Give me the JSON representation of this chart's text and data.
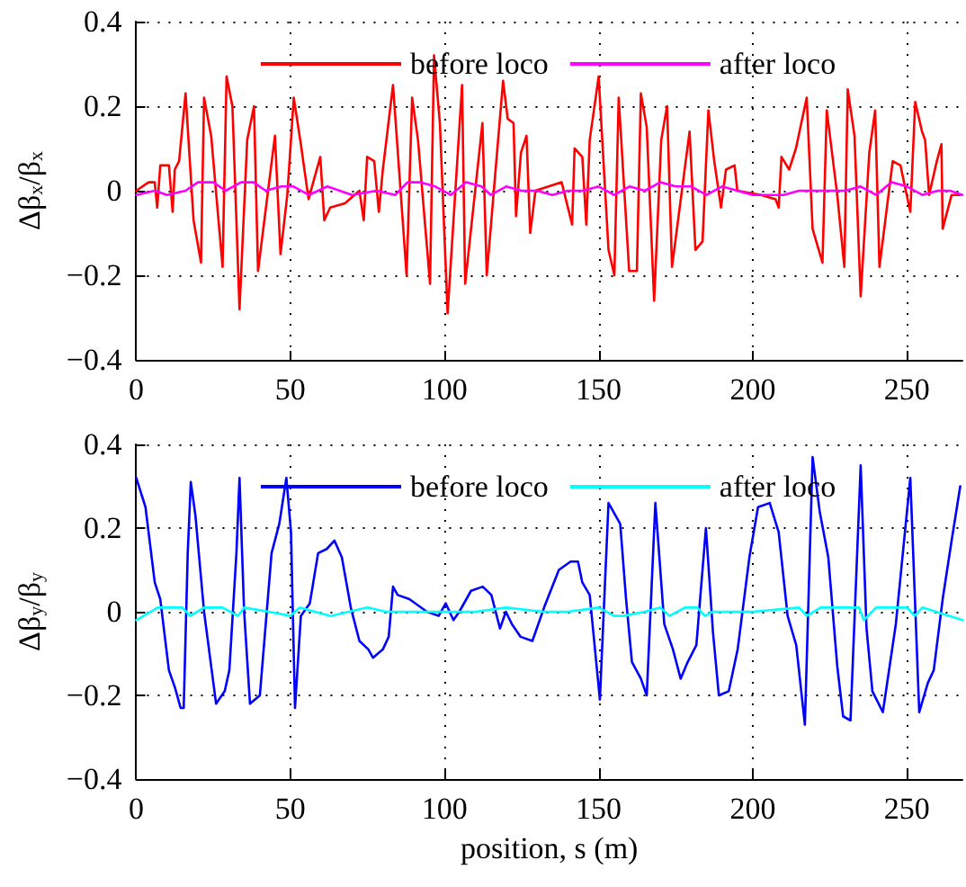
{
  "chart_data": [
    {
      "type": "line",
      "ylabel": "Δβ$_{x}$/β$_{x}$",
      "xlim": [
        0,
        268
      ],
      "xticks": [
        0,
        50,
        100,
        150,
        200,
        250
      ],
      "ylim": [
        -0.4,
        0.4
      ],
      "yticks": [
        -0.4,
        -0.2,
        0,
        0.2,
        0.4
      ],
      "grid": true,
      "legend": "top",
      "marker": "none",
      "line_style": "solid",
      "series": [
        {
          "name": "before loco",
          "color": "#ff0000",
          "x": [
            0,
            4,
            6,
            6.8,
            7.8,
            10.6,
            11.8,
            12.5,
            13.9,
            16,
            18.6,
            21,
            22,
            24.3,
            28,
            29.3,
            31.2,
            33.5,
            36,
            38.2,
            39.5,
            45,
            46.8,
            49,
            51.1,
            53.4,
            55.9,
            59.7,
            61,
            62.9,
            67.7,
            72.4,
            73.8,
            74.9,
            77.2,
            78.7,
            80,
            83.3,
            87.7,
            89.5,
            91.4,
            95.3,
            96.6,
            98.5,
            101,
            105.7,
            106.7,
            112.3,
            113.7,
            119,
            120.5,
            122.4,
            123.2,
            124.8,
            126.6,
            127.8,
            129.5,
            138,
            141.4,
            142.2,
            144.7,
            146,
            147.1,
            150,
            153.2,
            155.1,
            156.5,
            159.9,
            162.4,
            163.7,
            165.6,
            168,
            170.3,
            172.2,
            173.8,
            179.5,
            181.4,
            183.7,
            185.6,
            187.5,
            189.7,
            191.3,
            194.1,
            195,
            202.7,
            207.4,
            208.4,
            209.3,
            211.8,
            214,
            217.5,
            219.4,
            222.6,
            224,
            227.4,
            229.7,
            230.8,
            233,
            235,
            237.8,
            239.7,
            241.1,
            245.4,
            247.9,
            251.1,
            252.7,
            254.9,
            255.9,
            257.2,
            259.7,
            261.2,
            261.6,
            264.5,
            267.3
          ],
          "values": [
            0,
            0.02,
            0.02,
            -0.04,
            0.06,
            0.06,
            -0.05,
            0.05,
            0.07,
            0.23,
            -0.07,
            -0.17,
            0.22,
            0.13,
            -0.18,
            0.27,
            0.2,
            -0.28,
            0.12,
            0.2,
            -0.19,
            0.13,
            -0.15,
            -0.01,
            0.22,
            0.11,
            -0.02,
            0.08,
            -0.07,
            -0.04,
            -0.03,
            0,
            -0.07,
            0.08,
            0.07,
            -0.05,
            0.05,
            0.25,
            -0.2,
            0.22,
            0.12,
            -0.22,
            0.32,
            0.16,
            -0.29,
            0.25,
            -0.22,
            0.16,
            -0.2,
            0.26,
            0.17,
            0.16,
            -0.06,
            0.09,
            0.13,
            -0.1,
            0,
            0.02,
            -0.08,
            0.1,
            0.08,
            -0.08,
            0.12,
            0.27,
            -0.14,
            -0.2,
            0.22,
            -0.19,
            -0.19,
            0.23,
            0.15,
            -0.26,
            0.12,
            0.2,
            -0.18,
            0.14,
            -0.14,
            -0.12,
            0.19,
            0.07,
            -0.04,
            0.05,
            0.06,
            0,
            -0.01,
            -0.02,
            -0.04,
            0.08,
            0.05,
            0.1,
            0.22,
            -0.09,
            -0.17,
            0.19,
            -0.01,
            -0.18,
            0.24,
            0.13,
            -0.25,
            0.09,
            0.19,
            -0.18,
            0.07,
            0.06,
            -0.05,
            0.21,
            0.14,
            0.12,
            -0.01,
            0.07,
            0.11,
            -0.09,
            -0.01,
            -0.01
          ]
        },
        {
          "name": "after loco",
          "color": "#ff00ff",
          "x": [
            0,
            6,
            10,
            16,
            20,
            25,
            29,
            34,
            38,
            42,
            47,
            51,
            56,
            62,
            70,
            78,
            84,
            88,
            92,
            97,
            102,
            107,
            112,
            115,
            120,
            125,
            130,
            135,
            140,
            145,
            150,
            155,
            160,
            165,
            170,
            175,
            180,
            185,
            190,
            195,
            200,
            205,
            210,
            215,
            220,
            225,
            230,
            235,
            240,
            245,
            250,
            255,
            260,
            264,
            268
          ],
          "values": [
            -0.01,
            0,
            -0.01,
            0,
            0.02,
            0.02,
            0,
            0.02,
            0.02,
            0,
            0.01,
            0.01,
            -0.01,
            0.01,
            -0.01,
            0,
            -0.01,
            0.02,
            0.02,
            0.01,
            -0.01,
            0.02,
            0.01,
            -0.01,
            0.01,
            0,
            0,
            -0.01,
            0,
            0,
            0.01,
            -0.01,
            0.01,
            0,
            0.02,
            0.01,
            0.01,
            -0.01,
            0.01,
            0,
            -0.01,
            -0.01,
            -0.01,
            0,
            0,
            0,
            0,
            0.01,
            -0.01,
            0.02,
            0.01,
            -0.01,
            0,
            0,
            -0.01
          ]
        }
      ]
    },
    {
      "type": "line",
      "xlabel": "position, s (m)",
      "ylabel": "Δβ$_{y}$/β$_{y}$",
      "xlim": [
        0,
        268
      ],
      "xticks": [
        0,
        50,
        100,
        150,
        200,
        250
      ],
      "ylim": [
        -0.4,
        0.4
      ],
      "yticks": [
        -0.4,
        -0.2,
        0,
        0.2,
        0.4
      ],
      "grid": true,
      "legend": "top",
      "marker": "none",
      "line_style": "solid",
      "series": [
        {
          "name": "before loco",
          "color": "#0000ff",
          "x": [
            0,
            3,
            6,
            7.8,
            10.6,
            12.5,
            14.4,
            15.4,
            16.7,
            17.7,
            19.2,
            22,
            25.9,
            28.7,
            30.2,
            32.5,
            33.5,
            35,
            36.9,
            40.1,
            43.9,
            46.4,
            48.7,
            50.2,
            51.5,
            53.4,
            56.3,
            59,
            61.8,
            64.3,
            66.7,
            69.6,
            72.4,
            75.3,
            76.8,
            80,
            81.9,
            83.3,
            84.8,
            88.6,
            94.3,
            98.1,
            100.4,
            102.9,
            104.8,
            108.6,
            112.4,
            115.2,
            118,
            119.9,
            121.9,
            124.7,
            128.5,
            132.3,
            137.1,
            140.9,
            143.3,
            144.7,
            147.1,
            150.4,
            153.2,
            157,
            158.9,
            160.8,
            163.7,
            165.6,
            168.4,
            171.3,
            174.1,
            176.6,
            178.9,
            181.7,
            184.8,
            187.1,
            189,
            192.2,
            195.1,
            198.9,
            201.7,
            205.5,
            208.4,
            211.3,
            214.1,
            216.9,
            219.4,
            221.7,
            224.5,
            227.4,
            229.3,
            231.7,
            233.1,
            235,
            236.9,
            238.8,
            242.2,
            246.4,
            251.1,
            254,
            256.8,
            258.7,
            261.6,
            264.5,
            267.3
          ],
          "values": [
            0.32,
            0.25,
            0.07,
            0.03,
            -0.14,
            -0.18,
            -0.23,
            -0.23,
            0.14,
            0.31,
            0.23,
            0,
            -0.22,
            -0.19,
            -0.14,
            0.14,
            0.32,
            0,
            -0.22,
            -0.2,
            0.14,
            0.21,
            0.32,
            0.19,
            -0.23,
            -0.01,
            0.02,
            0.14,
            0.15,
            0.17,
            0.13,
            0.01,
            -0.07,
            -0.09,
            -0.11,
            -0.09,
            -0.06,
            0.06,
            0.04,
            0.03,
            0,
            -0.01,
            0.02,
            -0.02,
            0,
            0.05,
            0.06,
            0.04,
            -0.04,
            0,
            -0.03,
            -0.06,
            -0.07,
            0.01,
            0.1,
            0.12,
            0.12,
            0.07,
            0.04,
            -0.21,
            0.26,
            0.21,
            0.03,
            -0.12,
            -0.16,
            -0.2,
            0.26,
            -0.03,
            -0.09,
            -0.16,
            -0.12,
            -0.08,
            0.2,
            -0.05,
            -0.2,
            -0.19,
            -0.09,
            0.13,
            0.25,
            0.26,
            0.19,
            -0.01,
            -0.08,
            -0.27,
            0.37,
            0.24,
            0.13,
            -0.13,
            -0.25,
            -0.26,
            0,
            0.35,
            -0.04,
            -0.19,
            -0.24,
            -0.03,
            0.32,
            -0.24,
            -0.17,
            -0.14,
            0.03,
            0.17,
            0.3
          ]
        },
        {
          "name": "after loco",
          "color": "#00ffff",
          "x": [
            0,
            7,
            12,
            15,
            17.5,
            22,
            28,
            33,
            35,
            43,
            50,
            53,
            63,
            75,
            81,
            98,
            110,
            120,
            132,
            140,
            150,
            155,
            158,
            165,
            170,
            173,
            178,
            182,
            184.5,
            187,
            200,
            215,
            217.5,
            222,
            230,
            234.5,
            236,
            240,
            250,
            252.5,
            255,
            268
          ],
          "values": [
            -0.02,
            0.01,
            0.01,
            0.01,
            -0.01,
            0.01,
            0.01,
            -0.01,
            0.01,
            0,
            -0.01,
            0.01,
            -0.01,
            0.01,
            0,
            0,
            0,
            0.01,
            0,
            0,
            0.01,
            -0.01,
            -0.01,
            0,
            0.01,
            -0.01,
            0.01,
            0.01,
            -0.01,
            0,
            0,
            0.01,
            -0.01,
            0.01,
            0.01,
            0.01,
            -0.02,
            0.01,
            0.01,
            -0.01,
            0.01,
            -0.02
          ]
        }
      ]
    }
  ]
}
